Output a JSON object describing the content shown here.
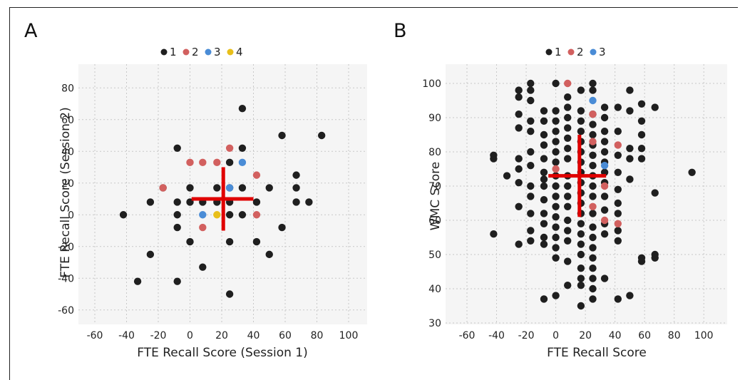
{
  "colors": {
    "cat1": "#1f1f1f",
    "cat2": "#d2605f",
    "cat3": "#4a8cd6",
    "cat4": "#e8bf1a",
    "cross": "#e00000",
    "grid": "#c8c8c8",
    "plotbg": "#f5f5f5"
  },
  "chart_data": [
    {
      "type": "scatter",
      "panel_label": "A",
      "xlabel": "FTE Recall Score (Session 1)",
      "ylabel": "FTE Recall Score (Session 2)",
      "xlim": [
        -60,
        100
      ],
      "ylim": [
        -70,
        90
      ],
      "xticks": [
        "-60",
        "-40",
        "-20",
        "0",
        "20",
        "40",
        "60",
        "80",
        "100"
      ],
      "yticks": [
        "-60",
        "-40",
        "-20",
        "0",
        "20",
        "40",
        "60",
        "80"
      ],
      "legend": {
        "placement": "top-center",
        "entries": [
          "1",
          "2",
          "3",
          "4"
        ]
      },
      "grid": true,
      "cross": {
        "x": 21,
        "y": 10,
        "x_range": [
          1,
          40
        ],
        "y_range": [
          -10,
          30
        ]
      },
      "series": [
        {
          "name": "1",
          "color": "cat1",
          "points": [
            [
              -42,
              0
            ],
            [
              -33,
              -42
            ],
            [
              -25,
              -25
            ],
            [
              -25,
              8
            ],
            [
              -17,
              17
            ],
            [
              -8,
              42
            ],
            [
              -8,
              -42
            ],
            [
              -8,
              8
            ],
            [
              -8,
              0
            ],
            [
              -8,
              -8
            ],
            [
              0,
              17
            ],
            [
              0,
              8
            ],
            [
              0,
              -17
            ],
            [
              8,
              8
            ],
            [
              8,
              -33
            ],
            [
              17,
              17
            ],
            [
              17,
              8
            ],
            [
              25,
              33
            ],
            [
              25,
              17
            ],
            [
              25,
              8
            ],
            [
              25,
              0
            ],
            [
              25,
              -17
            ],
            [
              25,
              -50
            ],
            [
              33,
              67
            ],
            [
              33,
              42
            ],
            [
              33,
              17
            ],
            [
              33,
              0
            ],
            [
              42,
              8
            ],
            [
              42,
              -17
            ],
            [
              50,
              17
            ],
            [
              50,
              -25
            ],
            [
              58,
              50
            ],
            [
              58,
              -8
            ],
            [
              67,
              25
            ],
            [
              67,
              17
            ],
            [
              67,
              8
            ],
            [
              75,
              8
            ],
            [
              83,
              50
            ]
          ]
        },
        {
          "name": "2",
          "color": "cat2",
          "points": [
            [
              -17,
              17
            ],
            [
              0,
              33
            ],
            [
              8,
              33
            ],
            [
              17,
              33
            ],
            [
              25,
              42
            ],
            [
              42,
              25
            ],
            [
              42,
              0
            ],
            [
              8,
              -8
            ]
          ]
        },
        {
          "name": "3",
          "color": "cat3",
          "points": [
            [
              33,
              33
            ],
            [
              25,
              17
            ],
            [
              8,
              0
            ]
          ]
        },
        {
          "name": "4",
          "color": "cat4",
          "points": [
            [
              17,
              0
            ]
          ]
        }
      ]
    },
    {
      "type": "scatter",
      "panel_label": "B",
      "xlabel": "FTE Recall Score",
      "ylabel": "WMC Score",
      "xlim": [
        -60,
        110
      ],
      "ylim": [
        30,
        105
      ],
      "xticks": [
        "-60",
        "-40",
        "-20",
        "0",
        "20",
        "40",
        "60",
        "80",
        "100"
      ],
      "yticks": [
        "30",
        "40",
        "50",
        "60",
        "70",
        "80",
        "90",
        "100"
      ],
      "legend": {
        "placement": "top-center",
        "entries": [
          "1",
          "2",
          "3"
        ]
      },
      "grid": true,
      "cross": {
        "x": 16,
        "y": 73,
        "x_range": [
          -5,
          34
        ],
        "y_range": [
          61,
          85
        ]
      },
      "series": [
        {
          "name": "1",
          "color": "cat1",
          "points": [
            [
              -42,
              79
            ],
            [
              -42,
              78
            ],
            [
              -42,
              56
            ],
            [
              -33,
              73
            ],
            [
              -25,
              98
            ],
            [
              -25,
              96
            ],
            [
              -25,
              91
            ],
            [
              -25,
              87
            ],
            [
              -25,
              78
            ],
            [
              -25,
              75
            ],
            [
              -25,
              71
            ],
            [
              -25,
              64
            ],
            [
              -25,
              53
            ],
            [
              -17,
              100
            ],
            [
              -17,
              98
            ],
            [
              -17,
              95
            ],
            [
              -17,
              89
            ],
            [
              -17,
              86
            ],
            [
              -17,
              80
            ],
            [
              -17,
              76
            ],
            [
              -17,
              70
            ],
            [
              -17,
              67
            ],
            [
              -17,
              62
            ],
            [
              -17,
              57
            ],
            [
              -17,
              54
            ],
            [
              -8,
              92
            ],
            [
              -8,
              89
            ],
            [
              -8,
              85
            ],
            [
              -8,
              82
            ],
            [
              -8,
              78
            ],
            [
              -8,
              74
            ],
            [
              -8,
              72
            ],
            [
              -8,
              70
            ],
            [
              -8,
              66
            ],
            [
              -8,
              62
            ],
            [
              -8,
              59
            ],
            [
              -8,
              55
            ],
            [
              -8,
              53
            ],
            [
              -8,
              37
            ],
            [
              0,
              100
            ],
            [
              0,
              92
            ],
            [
              0,
              89
            ],
            [
              0,
              86
            ],
            [
              0,
              83
            ],
            [
              0,
              80
            ],
            [
              0,
              77
            ],
            [
              0,
              73
            ],
            [
              0,
              70
            ],
            [
              0,
              67
            ],
            [
              0,
              64
            ],
            [
              0,
              61
            ],
            [
              0,
              58
            ],
            [
              0,
              55
            ],
            [
              0,
              52
            ],
            [
              0,
              49
            ],
            [
              0,
              38
            ],
            [
              8,
              96
            ],
            [
              8,
              93
            ],
            [
              8,
              90
            ],
            [
              8,
              87
            ],
            [
              8,
              84
            ],
            [
              8,
              81
            ],
            [
              8,
              78
            ],
            [
              8,
              73
            ],
            [
              8,
              70
            ],
            [
              8,
              67
            ],
            [
              8,
              64
            ],
            [
              8,
              60
            ],
            [
              8,
              57
            ],
            [
              8,
              54
            ],
            [
              8,
              48
            ],
            [
              8,
              41
            ],
            [
              17,
              98
            ],
            [
              17,
              92
            ],
            [
              17,
              89
            ],
            [
              17,
              86
            ],
            [
              17,
              83
            ],
            [
              17,
              80
            ],
            [
              17,
              77
            ],
            [
              17,
              74
            ],
            [
              17,
              71
            ],
            [
              17,
              68
            ],
            [
              17,
              65
            ],
            [
              17,
              62
            ],
            [
              17,
              59
            ],
            [
              17,
              56
            ],
            [
              17,
              53
            ],
            [
              17,
              50
            ],
            [
              17,
              46
            ],
            [
              17,
              43
            ],
            [
              17,
              41
            ],
            [
              17,
              35
            ],
            [
              25,
              100
            ],
            [
              25,
              98
            ],
            [
              25,
              91
            ],
            [
              25,
              88
            ],
            [
              25,
              85
            ],
            [
              25,
              82
            ],
            [
              25,
              79
            ],
            [
              25,
              76
            ],
            [
              25,
              73
            ],
            [
              25,
              70
            ],
            [
              25,
              67
            ],
            [
              25,
              62
            ],
            [
              25,
              58
            ],
            [
              25,
              55
            ],
            [
              25,
              52
            ],
            [
              25,
              49
            ],
            [
              25,
              46
            ],
            [
              25,
              43
            ],
            [
              25,
              40
            ],
            [
              25,
              37
            ],
            [
              33,
              93
            ],
            [
              33,
              90
            ],
            [
              33,
              86
            ],
            [
              33,
              83
            ],
            [
              33,
              80
            ],
            [
              33,
              77
            ],
            [
              33,
              74
            ],
            [
              33,
              71
            ],
            [
              33,
              67
            ],
            [
              33,
              63
            ],
            [
              33,
              59
            ],
            [
              33,
              56
            ],
            [
              33,
              43
            ],
            [
              42,
              93
            ],
            [
              42,
              86
            ],
            [
              42,
              79
            ],
            [
              42,
              74
            ],
            [
              42,
              69
            ],
            [
              42,
              65
            ],
            [
              42,
              62
            ],
            [
              42,
              57
            ],
            [
              42,
              54
            ],
            [
              42,
              37
            ],
            [
              50,
              98
            ],
            [
              50,
              92
            ],
            [
              50,
              81
            ],
            [
              50,
              78
            ],
            [
              50,
              72
            ],
            [
              50,
              38
            ],
            [
              58,
              94
            ],
            [
              58,
              89
            ],
            [
              58,
              85
            ],
            [
              58,
              81
            ],
            [
              58,
              78
            ],
            [
              58,
              49
            ],
            [
              58,
              48
            ],
            [
              67,
              93
            ],
            [
              67,
              68
            ],
            [
              67,
              50
            ],
            [
              67,
              49
            ],
            [
              92,
              74
            ]
          ]
        },
        {
          "name": "2",
          "color": "cat2",
          "points": [
            [
              8,
              100
            ],
            [
              25,
              91
            ],
            [
              25,
              83
            ],
            [
              25,
              64
            ],
            [
              33,
              70
            ],
            [
              33,
              60
            ],
            [
              42,
              82
            ],
            [
              42,
              59
            ],
            [
              0,
              75
            ]
          ]
        },
        {
          "name": "3",
          "color": "cat3",
          "points": [
            [
              25,
              95
            ],
            [
              33,
              76
            ]
          ]
        }
      ]
    }
  ]
}
